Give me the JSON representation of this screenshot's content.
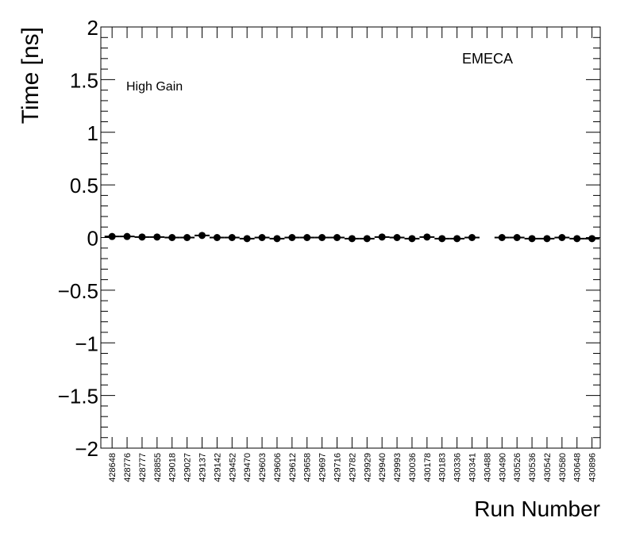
{
  "chart_data": {
    "type": "scatter",
    "title": "",
    "ylabel": "Time [ns]",
    "xlabel": "Run Number",
    "ylim": [
      -2,
      2
    ],
    "yticks": [
      {
        "value": 2,
        "label": "2"
      },
      {
        "value": 1.5,
        "label": "1.5"
      },
      {
        "value": 1,
        "label": "1"
      },
      {
        "value": 0.5,
        "label": "0.5"
      },
      {
        "value": 0,
        "label": "0"
      },
      {
        "value": -0.5,
        "label": "−0.5"
      },
      {
        "value": -1,
        "label": "−1"
      },
      {
        "value": -1.5,
        "label": "−1.5"
      },
      {
        "value": -2,
        "label": "−2"
      }
    ],
    "annotations": {
      "detector": "EMECA",
      "gain": "High Gain"
    },
    "categories": [
      "428648",
      "428776",
      "428777",
      "428855",
      "429018",
      "429027",
      "429137",
      "429142",
      "429452",
      "429470",
      "429603",
      "429606",
      "429612",
      "429658",
      "429697",
      "429716",
      "429782",
      "429929",
      "429940",
      "429993",
      "430036",
      "430178",
      "430183",
      "430336",
      "430341",
      "430488",
      "430490",
      "430526",
      "430536",
      "430542",
      "430580",
      "430648",
      "430896"
    ],
    "values": [
      0.01,
      0.01,
      0.005,
      0.005,
      0.0,
      0.0,
      0.02,
      0.0,
      0.0,
      -0.01,
      0.0,
      -0.01,
      0.0,
      0.0,
      0.0,
      0.0,
      -0.01,
      -0.01,
      0.005,
      0.0,
      -0.01,
      0.005,
      -0.01,
      -0.01,
      0.0,
      null,
      0.0,
      0.0,
      -0.01,
      -0.01,
      0.0,
      -0.01,
      -0.01
    ],
    "grid": false,
    "marker": "filled-circle",
    "marker_color": "#000000"
  }
}
